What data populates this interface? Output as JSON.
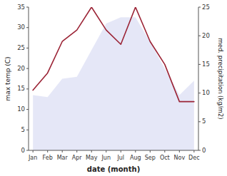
{
  "chart_data": {
    "type": "line",
    "categories": [
      "Jan",
      "Feb",
      "Mar",
      "Apr",
      "May",
      "Jun",
      "Jul",
      "Aug",
      "Sep",
      "Oct",
      "Nov",
      "Dec"
    ],
    "xlabel": "date (month)",
    "ylabel": "max temp (C)",
    "y2label": "med. precipitation (kg/m2)",
    "ylim": [
      0,
      35
    ],
    "yticks": [
      0,
      5,
      10,
      15,
      20,
      25,
      30,
      35
    ],
    "y2lim": [
      0,
      25
    ],
    "y2ticks": [
      0,
      5,
      10,
      15,
      20,
      25
    ],
    "series": [
      {
        "type": "area",
        "color": "#c5caee",
        "values": [
          13.5,
          13.0,
          17.5,
          18.0,
          24.5,
          31.0,
          32.5,
          32.5,
          26.5,
          20.0,
          13.5,
          17.0
        ]
      },
      {
        "type": "line",
        "color": "#9b2335",
        "axis": "y2",
        "values": [
          10.5,
          13.5,
          19.0,
          21.0,
          25.0,
          21.0,
          18.5,
          25.0,
          19.0,
          15.0,
          8.5,
          8.5
        ]
      }
    ]
  }
}
